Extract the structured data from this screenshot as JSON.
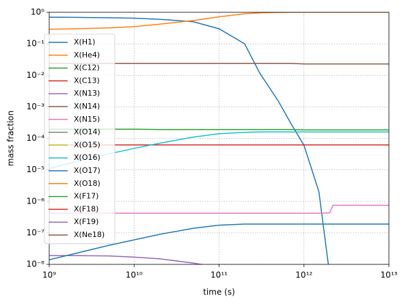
{
  "chart_data": {
    "type": "line",
    "xlabel": "time (s)",
    "ylabel": "mass fraction",
    "xscale": "log",
    "yscale": "log",
    "grid": true,
    "legend": "upper left",
    "xlim": [
      1000000000.0,
      10000000000000.0
    ],
    "xticks": [
      {
        "value": 1000000000.0,
        "label": "10⁹"
      },
      {
        "value": 10000000000.0,
        "label": "10¹⁰"
      },
      {
        "value": 100000000000.0,
        "label": "10¹¹"
      },
      {
        "value": 1000000000000.0,
        "label": "10¹²"
      },
      {
        "value": 10000000000000.0,
        "label": "10¹³"
      }
    ],
    "ylim": [
      1e-08,
      1
    ],
    "yticks": [
      {
        "value": 1e-08,
        "label": "10⁻⁸"
      },
      {
        "value": 1e-07,
        "label": "10⁻⁷"
      },
      {
        "value": 1e-06,
        "label": "10⁻⁶"
      },
      {
        "value": 1e-05,
        "label": "10⁻⁵"
      },
      {
        "value": 0.0001,
        "label": "10⁻⁴"
      },
      {
        "value": 0.001,
        "label": "10⁻³"
      },
      {
        "value": 0.01,
        "label": "10⁻²"
      },
      {
        "value": 0.1,
        "label": "10⁻¹"
      },
      {
        "value": 1,
        "label": "10⁰"
      }
    ],
    "x": [
      1000000000.0,
      2000000000.0,
      5000000000.0,
      10000000000.0,
      20000000000.0,
      50000000000.0,
      100000000000.0,
      200000000000.0,
      300000000000.0,
      500000000000.0,
      700000000000.0,
      1000000000000.0,
      1500000000000.0,
      2000000000000.0,
      2200000000000.0,
      3000000000000.0,
      5000000000000.0,
      10000000000000.0
    ],
    "series": [
      {
        "name": "X(H1)",
        "color": "#1f77b4",
        "values": [
          0.7,
          0.69,
          0.67,
          0.65,
          0.6,
          0.5,
          0.3,
          0.1,
          0.012,
          0.0015,
          0.0003,
          6e-05,
          2e-06,
          5e-09,
          null,
          null,
          null,
          null
        ]
      },
      {
        "name": "X(He4)",
        "color": "#ff7f0e",
        "values": [
          0.29,
          0.3,
          0.32,
          0.35,
          0.42,
          0.55,
          0.72,
          0.9,
          0.96,
          0.99,
          1.0,
          1.0,
          1.0,
          1.0,
          1.0,
          1.0,
          1.0,
          1.0
        ]
      },
      {
        "name": "X(C12)",
        "color": "#2ca02c",
        "values": [
          0.000195,
          0.000195,
          0.000195,
          0.000195,
          0.00019,
          0.00019,
          0.00019,
          0.00019,
          0.00019,
          0.00019,
          0.00019,
          0.000185,
          0.000185,
          0.000185,
          0.000185,
          0.000185,
          0.000185,
          0.000185
        ]
      },
      {
        "name": "X(C13)",
        "color": "#d62728",
        "values": [
          6.2e-05,
          6.2e-05,
          6.2e-05,
          6.2e-05,
          6.2e-05,
          6.2e-05,
          6.2e-05,
          6.2e-05,
          6.2e-05,
          6.2e-05,
          6.2e-05,
          6.2e-05,
          6.2e-05,
          6.2e-05,
          6.2e-05,
          6.2e-05,
          6.2e-05,
          6.2e-05
        ]
      },
      {
        "name": "X(N13)",
        "color": "#9467bd",
        "values": [
          1.9e-08,
          1.9e-08,
          1.85e-08,
          1.7e-08,
          1.5e-08,
          1.1e-08,
          8e-09,
          null,
          null,
          null,
          null,
          null,
          null,
          null,
          null,
          null,
          null,
          null
        ]
      },
      {
        "name": "X(N14)",
        "color": "#8c564b",
        "values": [
          0.024,
          0.024,
          0.024,
          0.024,
          0.024,
          0.024,
          0.024,
          0.024,
          0.024,
          0.024,
          0.024,
          0.023,
          0.023,
          0.023,
          0.023,
          0.023,
          0.023,
          0.023
        ]
      },
      {
        "name": "X(N15)",
        "color": "#e377c2",
        "values": [
          4.2e-07,
          4.2e-07,
          4.2e-07,
          4.2e-07,
          4.2e-07,
          4.2e-07,
          4.2e-07,
          4.2e-07,
          4.2e-07,
          4.2e-07,
          4.2e-07,
          4.2e-07,
          4.2e-07,
          4.3e-07,
          7.5e-07,
          7.5e-07,
          7.5e-07,
          7.5e-07
        ]
      },
      {
        "name": "X(O14)",
        "color": "#7f7f7f",
        "values": [
          null,
          null,
          null,
          null,
          null,
          null,
          null,
          null,
          null,
          null,
          null,
          null,
          null,
          null,
          null,
          null,
          null,
          null
        ]
      },
      {
        "name": "X(O15)",
        "color": "#bcbd22",
        "values": [
          null,
          null,
          null,
          null,
          null,
          null,
          null,
          null,
          null,
          null,
          null,
          null,
          null,
          null,
          null,
          null,
          null,
          null
        ]
      },
      {
        "name": "X(O16)",
        "color": "#17becf",
        "values": [
          1.1e-05,
          1.8e-05,
          3.2e-05,
          4.8e-05,
          7e-05,
          0.00011,
          0.00014,
          0.000155,
          0.00016,
          0.00016,
          0.00016,
          0.00016,
          0.00016,
          0.00016,
          0.00016,
          0.00016,
          0.00016,
          0.00016
        ]
      },
      {
        "name": "X(O17)",
        "color": "#1f77b4",
        "values": [
          1.4e-08,
          2.2e-08,
          4e-08,
          6e-08,
          9e-08,
          1.4e-07,
          1.75e-07,
          1.9e-07,
          1.9e-07,
          1.9e-07,
          1.9e-07,
          1.9e-07,
          1.9e-07,
          1.9e-07,
          1.9e-07,
          1.9e-07,
          1.9e-07,
          1.9e-07
        ]
      },
      {
        "name": "X(O18)",
        "color": "#ff7f0e",
        "values": [
          null,
          null,
          null,
          null,
          null,
          null,
          null,
          null,
          null,
          null,
          null,
          null,
          null,
          null,
          null,
          null,
          null,
          null
        ]
      },
      {
        "name": "X(F17)",
        "color": "#2ca02c",
        "values": [
          null,
          null,
          null,
          null,
          null,
          null,
          null,
          null,
          null,
          null,
          null,
          null,
          null,
          null,
          null,
          null,
          null,
          null
        ]
      },
      {
        "name": "X(F18)",
        "color": "#d62728",
        "values": [
          null,
          null,
          null,
          null,
          null,
          null,
          null,
          null,
          null,
          null,
          null,
          null,
          null,
          null,
          null,
          null,
          null,
          null
        ]
      },
      {
        "name": "X(F19)",
        "color": "#9467bd",
        "values": [
          null,
          null,
          null,
          null,
          null,
          null,
          null,
          null,
          null,
          null,
          null,
          null,
          null,
          null,
          null,
          null,
          null,
          null
        ]
      },
      {
        "name": "X(Ne18)",
        "color": "#8c564b",
        "values": [
          null,
          null,
          null,
          null,
          null,
          null,
          null,
          null,
          null,
          null,
          null,
          null,
          null,
          null,
          null,
          null,
          null,
          null
        ]
      }
    ]
  }
}
